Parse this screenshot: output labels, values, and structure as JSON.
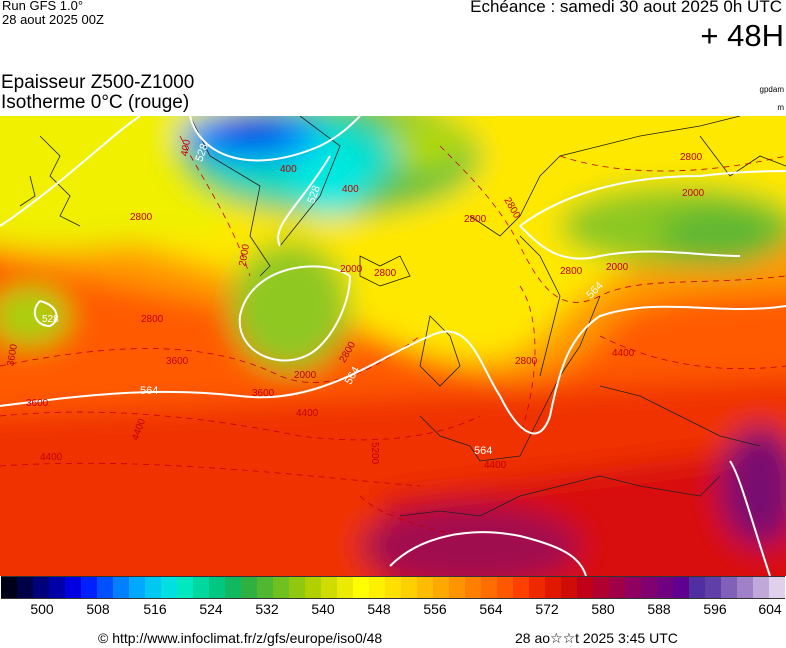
{
  "header": {
    "run_label": "Run GFS 1.0°",
    "run_date": "28 aout 2025 00Z",
    "echeance": "Echéance : samedi 30 aout 2025 0h UTC",
    "horizon": "+ 48H"
  },
  "titles": {
    "line1": "Epaisseur Z500-Z1000",
    "line2": "Isotherme 0°C (rouge)",
    "unit_thickness": "gpdam",
    "unit_isotherm": "m"
  },
  "map": {
    "thickness_labels": [
      "528",
      "528",
      "528",
      "564",
      "564",
      "564",
      "564"
    ],
    "isotherm_labels": [
      "400",
      "400",
      "400",
      "2000",
      "2000",
      "2000",
      "2000",
      "2000",
      "2800",
      "2800",
      "2800",
      "2800",
      "2800",
      "2800",
      "2800",
      "2800",
      "2800",
      "3600",
      "3600",
      "3600",
      "3600",
      "4400",
      "4400",
      "4400",
      "4400",
      "5200",
      "4400"
    ],
    "thickness_line_color": "#ffffff",
    "isotherm_line_color": "#c00000"
  },
  "legend": {
    "colors": [
      "#000018",
      "#000048",
      "#00007a",
      "#0000aa",
      "#0000e0",
      "#0020ff",
      "#0050ff",
      "#0080ff",
      "#00a8ff",
      "#00c8f0",
      "#00e0e0",
      "#00e8c0",
      "#00d8a0",
      "#00c880",
      "#10b860",
      "#30b040",
      "#50b830",
      "#70c020",
      "#90c810",
      "#b0d000",
      "#d0dc00",
      "#ecea00",
      "#ffff00",
      "#fff000",
      "#ffe000",
      "#ffd000",
      "#ffbc00",
      "#ffa800",
      "#ff9400",
      "#ff8000",
      "#ff6c00",
      "#ff5800",
      "#ff4000",
      "#f02800",
      "#e01800",
      "#d00c08",
      "#c00018",
      "#b00030",
      "#a00048",
      "#900060",
      "#800070",
      "#700080",
      "#600090",
      "#5030a0",
      "#6040a8",
      "#8060b8",
      "#a080c8",
      "#c0a8d8",
      "#e0d0ec"
    ],
    "ticks": [
      "500",
      "508",
      "516",
      "524",
      "532",
      "540",
      "548",
      "556",
      "564",
      "572",
      "580",
      "588",
      "596",
      "604"
    ]
  },
  "footer": {
    "copyright": "© http://www.infoclimat.fr/z/gfs/europe/iso0/48",
    "stamp": "28 ao☆☆t 2025  3:45 UTC"
  }
}
